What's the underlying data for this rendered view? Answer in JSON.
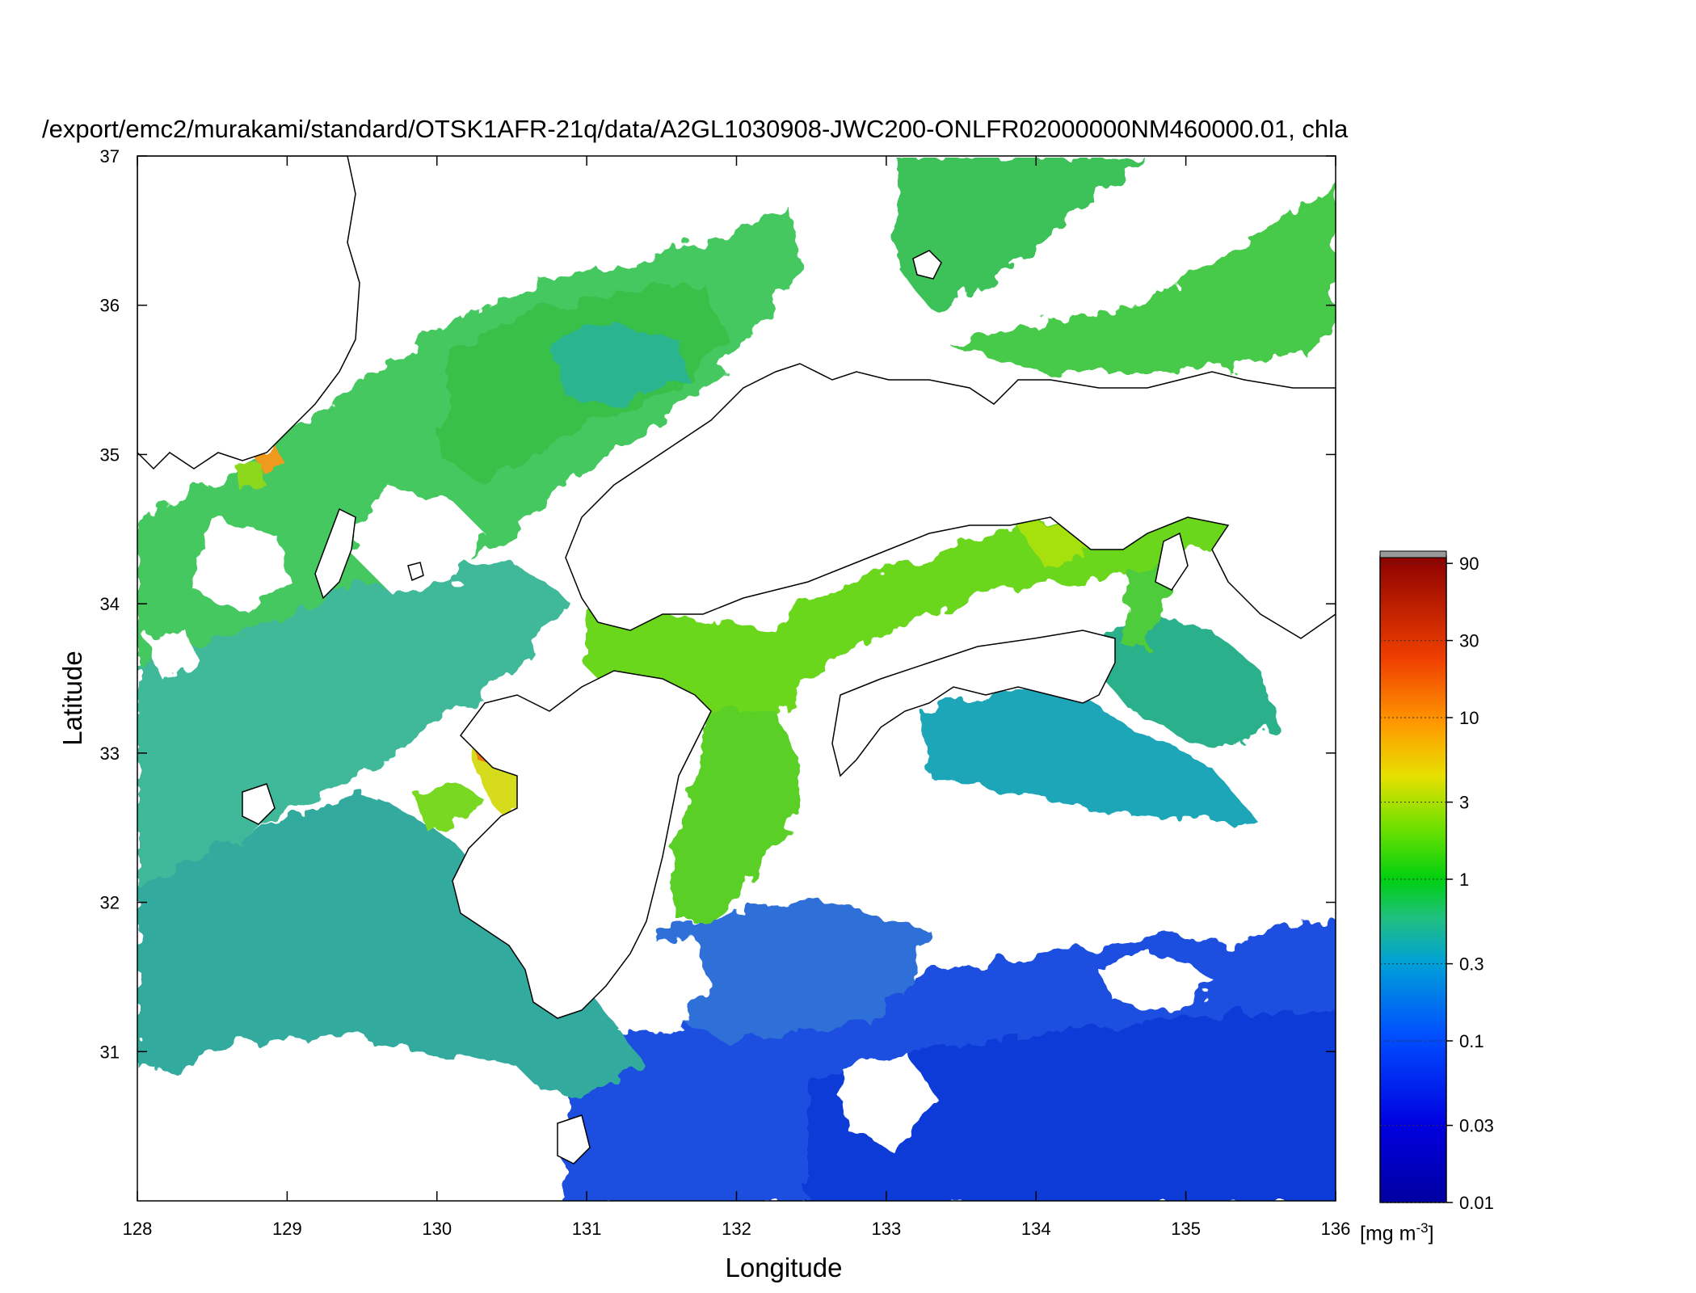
{
  "title": "/export/emc2/murakami/standard/OTSK1AFR-21q/data/A2GL1030908-JWC200-ONLFR02000000NM460000.01, chla",
  "map": {
    "xlabel": "Longitude",
    "ylabel": "Latitude",
    "lon_range": [
      128,
      136
    ],
    "lat_range": [
      30,
      37
    ],
    "lon_ticks": [
      "128",
      "129",
      "130",
      "131",
      "132",
      "133",
      "134",
      "135",
      "136"
    ],
    "lat_ticks": [
      "31",
      "32",
      "33",
      "34",
      "35",
      "36",
      "37"
    ]
  },
  "colorbar": {
    "scale": "log",
    "range": [
      0.01,
      100
    ],
    "tick_labels": [
      "0.01",
      "0.03",
      "0.1",
      "0.3",
      "1",
      "3",
      "10",
      "30",
      "90"
    ],
    "units_base": "[mg m",
    "units_exp": "-3",
    "units_close": "]",
    "colors": [
      "#0000a0",
      "#0000ff",
      "#0060ff",
      "#00a0d0",
      "#20c070",
      "#00d000",
      "#80e000",
      "#f0d000",
      "#ff8000",
      "#e02000",
      "#900000"
    ]
  },
  "colors": {
    "land": "#ffffff",
    "coast": "#000000",
    "cloud": "#ffffff"
  }
}
